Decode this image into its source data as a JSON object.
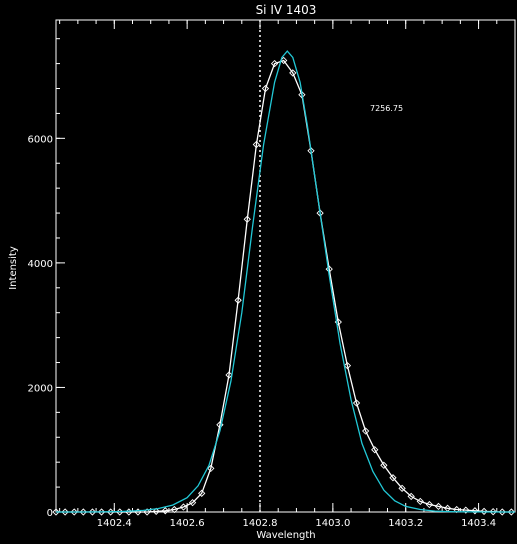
{
  "chart_data": {
    "type": "line",
    "title": "Si IV 1403",
    "xlabel": "Wavelength",
    "ylabel": "Intensity",
    "xlim": [
      1402.24,
      1403.5
    ],
    "ylim": [
      0,
      7900
    ],
    "xticks": [
      1402.4,
      1402.6,
      1402.8,
      1403.0,
      1403.2,
      1403.4
    ],
    "xtick_labels": [
      "1402.4",
      "1402.6",
      "1402.8",
      "1403.0",
      "1403.2",
      "1403.4"
    ],
    "yticks": [
      0,
      2000,
      4000,
      6000
    ],
    "ytick_labels": [
      "0",
      "2000",
      "4000",
      "6000"
    ],
    "reference_line_x": 1402.8,
    "annotation": "7256.75",
    "grid": false,
    "background": "#000000",
    "axis_color": "#ffffff",
    "series": [
      {
        "color": "#ffffff",
        "marker": "diamond",
        "x": [
          1402.24,
          1402.265,
          1402.29,
          1402.315,
          1402.34,
          1402.365,
          1402.39,
          1402.415,
          1402.44,
          1402.465,
          1402.49,
          1402.515,
          1402.54,
          1402.565,
          1402.59,
          1402.615,
          1402.64,
          1402.665,
          1402.69,
          1402.715,
          1402.74,
          1402.765,
          1402.79,
          1402.815,
          1402.84,
          1402.865,
          1402.89,
          1402.915,
          1402.94,
          1402.965,
          1402.99,
          1403.015,
          1403.04,
          1403.065,
          1403.09,
          1403.115,
          1403.14,
          1403.165,
          1403.19,
          1403.215,
          1403.24,
          1403.265,
          1403.29,
          1403.315,
          1403.34,
          1403.365,
          1403.39,
          1403.415,
          1403.44,
          1403.465,
          1403.49
        ],
        "y": [
          0,
          0,
          0,
          0,
          0,
          0,
          0,
          0,
          0,
          0,
          0,
          10,
          20,
          40,
          80,
          150,
          300,
          700,
          1400,
          2200,
          3400,
          4700,
          5900,
          6800,
          7200,
          7250,
          7050,
          6700,
          5800,
          4800,
          3900,
          3050,
          2350,
          1750,
          1300,
          1000,
          750,
          550,
          380,
          250,
          170,
          120,
          90,
          60,
          40,
          30,
          20,
          10,
          5,
          0,
          0
        ]
      },
      {
        "color": "#22c8d6",
        "marker": "none",
        "x": [
          1402.24,
          1402.3,
          1402.36,
          1402.42,
          1402.48,
          1402.52,
          1402.56,
          1402.6,
          1402.63,
          1402.66,
          1402.69,
          1402.72,
          1402.75,
          1402.78,
          1402.81,
          1402.84,
          1402.86,
          1402.875,
          1402.89,
          1402.91,
          1402.93,
          1402.96,
          1402.99,
          1403.02,
          1403.05,
          1403.08,
          1403.11,
          1403.14,
          1403.17,
          1403.2,
          1403.24,
          1403.28,
          1403.32,
          1403.38,
          1403.44,
          1403.5
        ],
        "y": [
          0,
          0,
          2,
          8,
          25,
          55,
          110,
          230,
          420,
          750,
          1300,
          2100,
          3200,
          4600,
          5900,
          6900,
          7300,
          7400,
          7300,
          6900,
          6200,
          5000,
          3800,
          2700,
          1800,
          1100,
          650,
          350,
          180,
          90,
          40,
          15,
          6,
          2,
          0,
          0
        ]
      }
    ]
  }
}
